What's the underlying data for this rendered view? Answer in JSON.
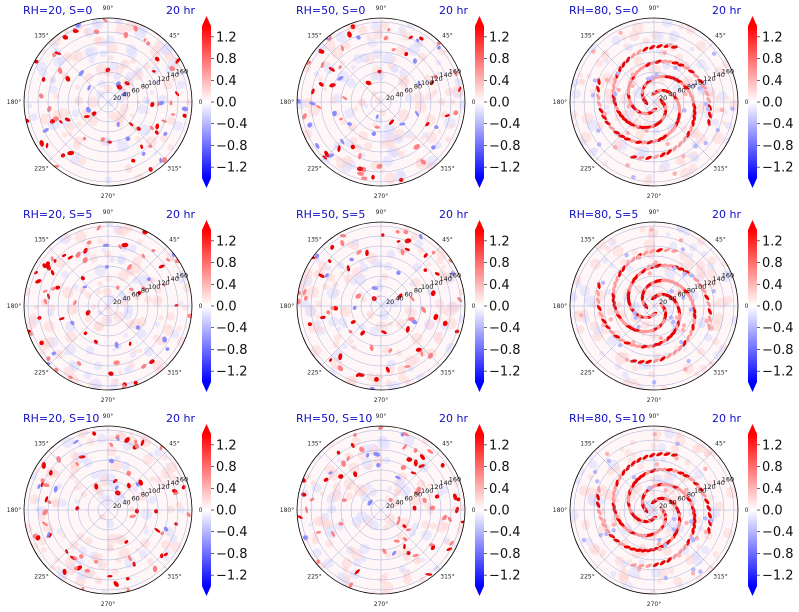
{
  "chart_data": {
    "type": "heatmap",
    "projection": "polar",
    "layout": "3x3 grid",
    "colormap": "bwr",
    "colorbar_extend": "both",
    "angular_tick_labels": [
      "0°",
      "45°",
      "90°",
      "135°",
      "180°",
      "225°",
      "270°",
      "315°"
    ],
    "radial_tick_labels": [
      "20",
      "40",
      "60",
      "80",
      "100",
      "120",
      "140",
      "160"
    ],
    "colorbar_ticks": [
      "1.2",
      "0.8",
      "0.4",
      "0.0",
      "−0.4",
      "−0.8",
      "−1.2"
    ],
    "colorbar_range": [
      -1.4,
      1.4
    ],
    "panels": [
      {
        "title": "RH=20, S=0",
        "time": "20 hr",
        "pattern": "scattered"
      },
      {
        "title": "RH=50, S=0",
        "time": "20 hr",
        "pattern": "scattered"
      },
      {
        "title": "RH=80, S=0",
        "time": "20 hr",
        "pattern": "spiral"
      },
      {
        "title": "RH=20, S=5",
        "time": "20 hr",
        "pattern": "scattered"
      },
      {
        "title": "RH=50, S=5",
        "time": "20 hr",
        "pattern": "scattered"
      },
      {
        "title": "RH=80, S=5",
        "time": "20 hr",
        "pattern": "spiral"
      },
      {
        "title": "RH=20, S=10",
        "time": "20 hr",
        "pattern": "scattered"
      },
      {
        "title": "RH=50, S=10",
        "time": "20 hr",
        "pattern": "scattered"
      },
      {
        "title": "RH=80, S=10",
        "time": "20 hr",
        "pattern": "spiral"
      }
    ]
  }
}
